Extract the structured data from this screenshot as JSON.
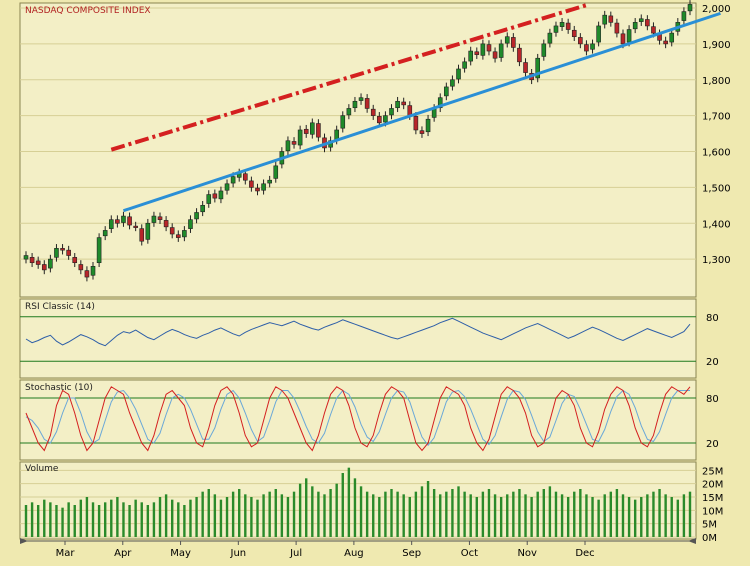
{
  "colors": {
    "background": "#efe9b0",
    "panel": "#f3efc6",
    "grid": "#d6cf95",
    "up_candle": "#1f8a2a",
    "down_candle": "#b8262a",
    "resistance": "#d42020",
    "support": "#2a8fd6",
    "rsi_line": "#2e5fa8",
    "stoch_k": "#d42020",
    "stoch_d": "#6aa8d8",
    "volume": "#2a8a2a",
    "ref_line": "#1f7a1f"
  },
  "chart_data": [
    {
      "type": "candlestick",
      "title": "NASDAQ COMPOSITE INDEX",
      "ylim": [
        1200,
        2000
      ],
      "y_ticks": [
        "1,300",
        "1,400",
        "1,500",
        "1,600",
        "1,700",
        "1,800",
        "1,900",
        "2,000"
      ],
      "y_tick_values": [
        1300,
        1400,
        1500,
        1600,
        1700,
        1800,
        1900,
        2000
      ],
      "x_tick_labels": [
        "Mar",
        "Apr",
        "May",
        "Jun",
        "Jul",
        "Aug",
        "Sep",
        "Oct",
        "Nov",
        "Dec"
      ],
      "close": [
        1310,
        1290,
        1285,
        1270,
        1300,
        1330,
        1325,
        1310,
        1290,
        1270,
        1250,
        1280,
        1360,
        1380,
        1410,
        1400,
        1420,
        1395,
        1390,
        1350,
        1400,
        1420,
        1410,
        1390,
        1370,
        1360,
        1380,
        1410,
        1430,
        1450,
        1480,
        1470,
        1490,
        1510,
        1530,
        1540,
        1520,
        1500,
        1490,
        1510,
        1520,
        1560,
        1600,
        1630,
        1620,
        1660,
        1650,
        1680,
        1640,
        1610,
        1630,
        1660,
        1700,
        1720,
        1740,
        1750,
        1720,
        1700,
        1680,
        1700,
        1720,
        1740,
        1730,
        1700,
        1660,
        1650,
        1690,
        1720,
        1750,
        1780,
        1800,
        1830,
        1850,
        1880,
        1870,
        1900,
        1880,
        1860,
        1900,
        1920,
        1890,
        1850,
        1820,
        1800,
        1860,
        1900,
        1930,
        1950,
        1960,
        1940,
        1920,
        1900,
        1880,
        1900,
        1950,
        1980,
        1960,
        1930,
        1900,
        1940,
        1960,
        1970,
        1950,
        1930,
        1910,
        1900,
        1930,
        1960,
        1990,
        2010
      ],
      "open": [
        1300,
        1305,
        1295,
        1285,
        1275,
        1305,
        1330,
        1325,
        1305,
        1285,
        1268,
        1255,
        1290,
        1365,
        1385,
        1410,
        1402,
        1418,
        1392,
        1385,
        1355,
        1402,
        1418,
        1408,
        1388,
        1368,
        1362,
        1385,
        1412,
        1432,
        1455,
        1482,
        1468,
        1492,
        1512,
        1528,
        1538,
        1518,
        1498,
        1492,
        1512,
        1525,
        1565,
        1602,
        1628,
        1618,
        1662,
        1648,
        1678,
        1638,
        1612,
        1632,
        1665,
        1702,
        1722,
        1742,
        1748,
        1718,
        1698,
        1682,
        1702,
        1722,
        1738,
        1728,
        1698,
        1658,
        1655,
        1695,
        1722,
        1755,
        1782,
        1802,
        1832,
        1852,
        1878,
        1868,
        1898,
        1878,
        1862,
        1902,
        1918,
        1888,
        1848,
        1818,
        1805,
        1865,
        1902,
        1932,
        1948,
        1958,
        1938,
        1918,
        1898,
        1885,
        1905,
        1955,
        1978,
        1958,
        1928,
        1905,
        1942,
        1962,
        1968,
        1948,
        1928,
        1908,
        1905,
        1935,
        1965,
        1992
      ],
      "resistance_line": {
        "start_index": 14,
        "start_value": 1605,
        "end_index": 92,
        "end_value": 2008
      },
      "support_line": {
        "start_index": 16,
        "start_value": 1435,
        "end_index": 118,
        "end_value": 1985
      }
    },
    {
      "type": "line",
      "title": "RSI Classic (14)",
      "ylim": [
        0,
        100
      ],
      "y_ticks": [
        "20",
        "80"
      ],
      "reference_levels": [
        20,
        80
      ],
      "values": [
        50,
        45,
        48,
        52,
        55,
        47,
        42,
        46,
        51,
        56,
        53,
        49,
        44,
        41,
        48,
        55,
        60,
        58,
        62,
        57,
        52,
        49,
        54,
        59,
        63,
        60,
        56,
        53,
        51,
        55,
        58,
        62,
        65,
        61,
        57,
        54,
        59,
        63,
        66,
        69,
        72,
        70,
        68,
        71,
        74,
        70,
        67,
        64,
        62,
        66,
        69,
        72,
        76,
        73,
        70,
        67,
        64,
        61,
        58,
        55,
        52,
        50,
        53,
        56,
        59,
        62,
        65,
        68,
        72,
        75,
        78,
        74,
        70,
        66,
        62,
        58,
        55,
        52,
        49,
        53,
        57,
        61,
        65,
        68,
        71,
        67,
        63,
        59,
        55,
        51,
        54,
        58,
        62,
        66,
        63,
        59,
        55,
        51,
        48,
        52,
        56,
        60,
        64,
        61,
        58,
        55,
        52,
        56,
        60,
        70
      ]
    },
    {
      "type": "line",
      "title": "Stochastic (10)",
      "ylim": [
        0,
        100
      ],
      "y_ticks": [
        "20",
        "80"
      ],
      "reference_levels": [
        20,
        80
      ],
      "k_values": [
        60,
        40,
        20,
        10,
        30,
        70,
        90,
        85,
        60,
        30,
        10,
        20,
        50,
        80,
        95,
        90,
        85,
        60,
        40,
        20,
        10,
        30,
        60,
        85,
        90,
        80,
        70,
        40,
        20,
        15,
        40,
        70,
        90,
        95,
        85,
        60,
        30,
        15,
        20,
        50,
        80,
        95,
        90,
        80,
        60,
        40,
        20,
        10,
        30,
        60,
        85,
        95,
        90,
        70,
        40,
        20,
        15,
        30,
        60,
        85,
        95,
        90,
        80,
        50,
        20,
        10,
        20,
        50,
        80,
        95,
        90,
        85,
        70,
        40,
        20,
        10,
        25,
        55,
        85,
        95,
        90,
        80,
        60,
        30,
        15,
        20,
        50,
        80,
        90,
        85,
        70,
        40,
        20,
        15,
        35,
        65,
        85,
        95,
        90,
        70,
        40,
        20,
        15,
        30,
        60,
        85,
        95,
        90,
        85,
        95
      ],
      "d_values": [
        55,
        50,
        40,
        25,
        20,
        35,
        60,
        80,
        80,
        60,
        35,
        20,
        25,
        50,
        75,
        88,
        90,
        80,
        65,
        45,
        25,
        20,
        33,
        58,
        80,
        85,
        80,
        65,
        45,
        25,
        25,
        40,
        65,
        85,
        90,
        80,
        60,
        38,
        22,
        28,
        50,
        75,
        90,
        90,
        80,
        62,
        42,
        25,
        20,
        33,
        58,
        80,
        90,
        85,
        68,
        45,
        28,
        22,
        35,
        58,
        80,
        90,
        88,
        75,
        50,
        28,
        17,
        27,
        50,
        75,
        88,
        90,
        82,
        65,
        45,
        25,
        18,
        30,
        55,
        78,
        90,
        88,
        78,
        57,
        35,
        22,
        28,
        50,
        73,
        85,
        82,
        65,
        45,
        25,
        22,
        38,
        62,
        82,
        90,
        85,
        67,
        43,
        25,
        22,
        35,
        58,
        80,
        90,
        90,
        90
      ]
    },
    {
      "type": "bar",
      "title": "Volume",
      "ylim": [
        0,
        27
      ],
      "y_ticks": [
        "0M",
        "5M",
        "10M",
        "15M",
        "20M",
        "25M"
      ],
      "y_tick_values": [
        0,
        5,
        10,
        15,
        20,
        25
      ],
      "unit": "M",
      "values": [
        12,
        13,
        12,
        14,
        13,
        12,
        11,
        13,
        12,
        14,
        15,
        13,
        12,
        13,
        14,
        15,
        13,
        12,
        14,
        13,
        12,
        13,
        15,
        16,
        14,
        13,
        12,
        14,
        15,
        17,
        18,
        16,
        14,
        15,
        17,
        18,
        16,
        15,
        14,
        16,
        17,
        18,
        16,
        15,
        17,
        20,
        22,
        19,
        17,
        16,
        18,
        20,
        24,
        26,
        22,
        19,
        17,
        16,
        15,
        17,
        18,
        17,
        16,
        15,
        17,
        19,
        21,
        18,
        16,
        17,
        18,
        19,
        17,
        16,
        15,
        17,
        18,
        16,
        15,
        16,
        17,
        18,
        16,
        15,
        17,
        18,
        19,
        17,
        16,
        15,
        17,
        18,
        16,
        15,
        14,
        16,
        17,
        18,
        16,
        15,
        14,
        15,
        16,
        17,
        18,
        16,
        15,
        14,
        16,
        17
      ]
    }
  ]
}
